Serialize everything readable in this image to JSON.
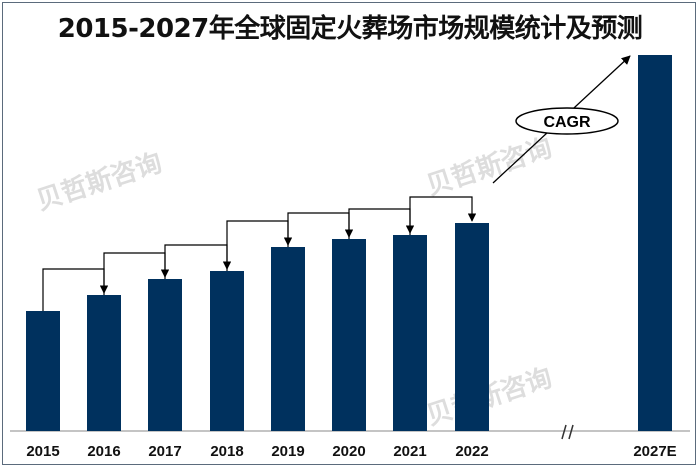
{
  "chart_data": {
    "type": "bar",
    "title": "2015-2027年全球固定火葬场市场规模统计及预测",
    "categories": [
      "2015",
      "2016",
      "2017",
      "2018",
      "2019",
      "2020",
      "2021",
      "2022",
      "2027E"
    ],
    "values": [
      30,
      34,
      38,
      40,
      46,
      48,
      49,
      52,
      94
    ],
    "ylim": [
      0,
      100
    ],
    "xlabel": "",
    "ylabel": "",
    "axis_break_between": [
      "2022",
      "2027E"
    ],
    "annotations": {
      "cagr": "CAGR"
    },
    "bar_color": "#00315e",
    "watermark": "贝哲斯咨询"
  }
}
